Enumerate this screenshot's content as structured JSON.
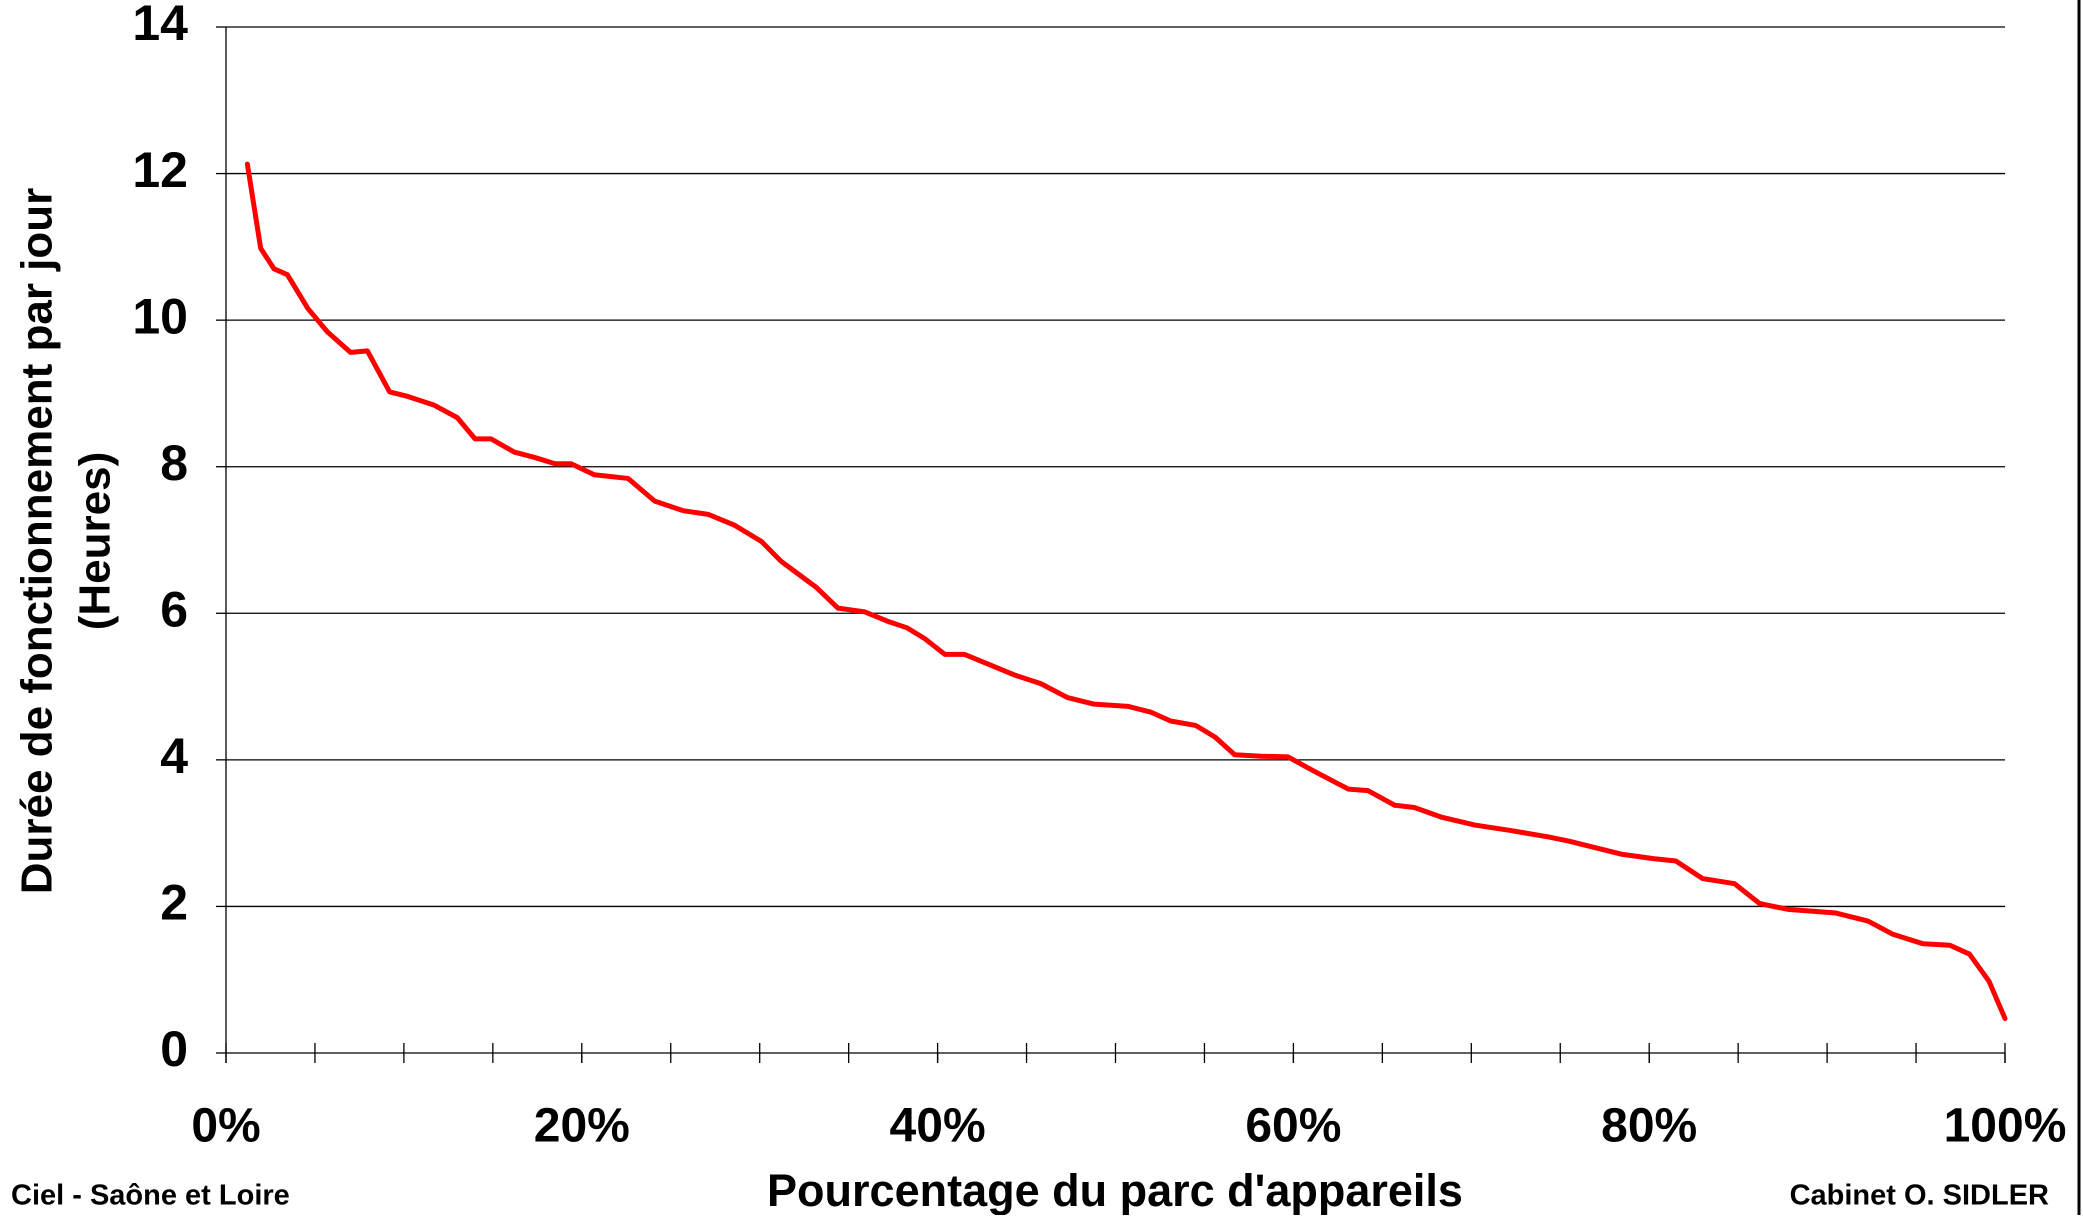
{
  "chart_data": {
    "type": "line",
    "ylabel": [
      "Durée de fonctionnement par jour",
      "(Heures)"
    ],
    "xlabel": "Pourcentage du parc d'appareils",
    "footer_left": "Ciel - Saône et Loire",
    "footer_right": "Cabinet O. SIDLER",
    "x": [
      1.2,
      1.95,
      2.7,
      3.45,
      4.6,
      5.7,
      7.0,
      7.95,
      9.2,
      10.2,
      11.7,
      13.0,
      14.0,
      14.9,
      16.2,
      17.3,
      18.5,
      19.4,
      20.7,
      22.6,
      24.1,
      25.7,
      27.1,
      28.6,
      30.1,
      31.2,
      32.2,
      33.2,
      34.4,
      35.9,
      37.2,
      38.3,
      39.3,
      40.4,
      41.5,
      42.8,
      44.3,
      45.8,
      47.3,
      48.8,
      50.7,
      52.0,
      53.1,
      54.5,
      55.6,
      56.7,
      58.2,
      59.7,
      61.2,
      63.1,
      64.2,
      65.7,
      66.8,
      68.3,
      70.2,
      72.1,
      74.3,
      75.5,
      77.0,
      78.5,
      80.3,
      81.5,
      83.0,
      84.8,
      86.2,
      87.8,
      90.5,
      92.3,
      93.7,
      95.4,
      96.9,
      98.0,
      99.1,
      100
    ],
    "series": [
      {
        "color": "#ff0000",
        "values": [
          12.13,
          10.98,
          10.7,
          10.62,
          10.16,
          9.84,
          9.56,
          9.58,
          9.02,
          8.96,
          8.84,
          8.67,
          8.38,
          8.38,
          8.2,
          8.13,
          8.04,
          8.04,
          7.89,
          7.84,
          7.53,
          7.4,
          7.35,
          7.2,
          6.98,
          6.71,
          6.53,
          6.35,
          6.07,
          6.02,
          5.89,
          5.8,
          5.65,
          5.44,
          5.44,
          5.31,
          5.16,
          5.04,
          4.85,
          4.76,
          4.73,
          4.65,
          4.53,
          4.47,
          4.31,
          4.07,
          4.05,
          4.04,
          3.84,
          3.6,
          3.58,
          3.38,
          3.35,
          3.22,
          3.11,
          3.04,
          2.95,
          2.89,
          2.8,
          2.71,
          2.65,
          2.62,
          2.38,
          2.31,
          2.04,
          1.96,
          1.91,
          1.8,
          1.62,
          1.49,
          1.47,
          1.35,
          0.98,
          0.47
        ]
      }
    ],
    "xlim": [
      0,
      100
    ],
    "xticks": [
      {
        "value": 0,
        "label": "0%"
      },
      {
        "value": 20,
        "label": "20%"
      },
      {
        "value": 40,
        "label": "40%"
      },
      {
        "value": 60,
        "label": "60%"
      },
      {
        "value": 80,
        "label": "80%"
      },
      {
        "value": 100,
        "label": "100%"
      }
    ],
    "xminorticks": [
      0,
      5,
      10,
      15,
      20,
      25,
      30,
      35,
      40,
      45,
      50,
      55,
      60,
      65,
      70,
      75,
      80,
      85,
      90,
      95,
      100
    ],
    "ylim": [
      0,
      14
    ],
    "yticks": [
      0,
      2,
      4,
      6,
      8,
      10,
      12,
      14
    ],
    "grid": true
  }
}
